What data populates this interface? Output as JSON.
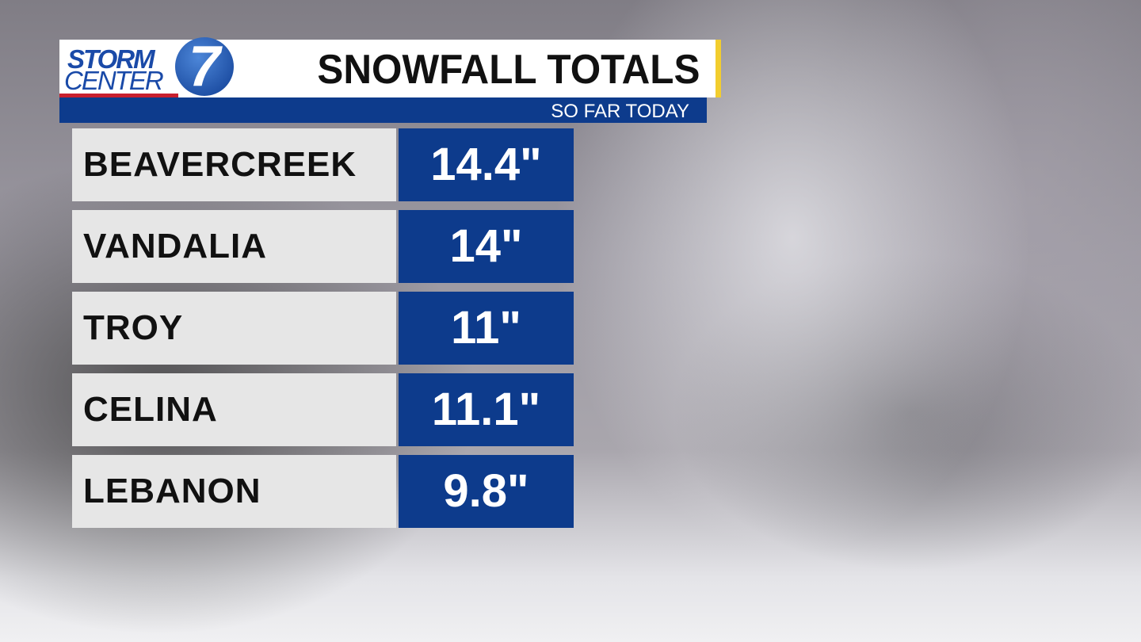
{
  "logo": {
    "line1": "STORM",
    "line2": "CENTER",
    "number": "7"
  },
  "header": {
    "title": "SNOWFALL TOTALS",
    "subtitle": "SO FAR TODAY"
  },
  "colors": {
    "blue": "#0d3b8c",
    "accent_yellow": "#f2cd2e",
    "accent_red": "#c8202e"
  },
  "rows": [
    {
      "location": "BEAVERCREEK",
      "total": "14.4\""
    },
    {
      "location": "VANDALIA",
      "total": "14\""
    },
    {
      "location": "TROY",
      "total": "11\""
    },
    {
      "location": "CELINA",
      "total": "11.1\""
    },
    {
      "location": "LEBANON",
      "total": "9.8\""
    }
  ]
}
